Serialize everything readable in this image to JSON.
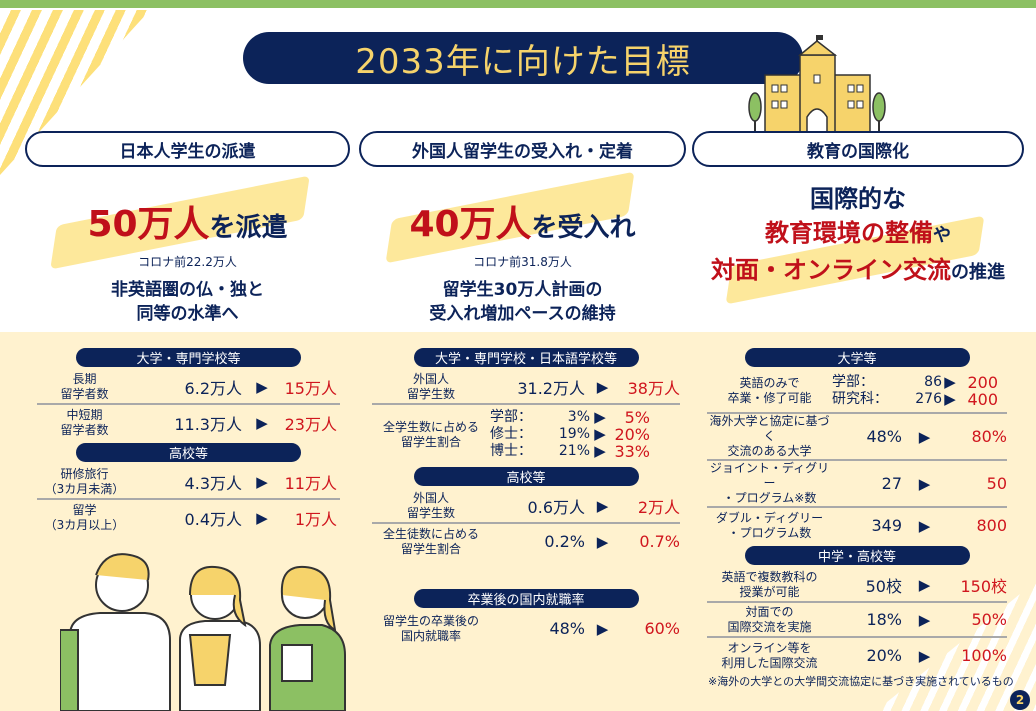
{
  "title": "2033年に向けた目標",
  "page_number": "2",
  "colors": {
    "navy": "#0c2359",
    "red": "#d0161e",
    "cream": "#fff2cf",
    "green": "#8cc063",
    "yellow": "#f6d36b"
  },
  "columns": [
    {
      "heading": "日本人学生の派遣",
      "big": "50万人",
      "mid": "を派遣",
      "sub": "コロナ前22.2万人",
      "desc": "非英語圏の仏・独と\n同等の水準へ"
    },
    {
      "heading": "外国人留学生の受入れ・定着",
      "big": "40万人",
      "mid": "を受入れ",
      "sub": "コロナ前31.8万人",
      "desc": "留学生30万人計画の\n受入れ増加ペースの維持"
    },
    {
      "heading": "教育の国際化",
      "line1": "国際的な",
      "line2a": "教育環境の整備",
      "line2b": "や",
      "line3a": "対面・オンライン交流",
      "line3b": "の推進"
    }
  ],
  "tables": [
    [
      {
        "pill": "大学・専門学校等"
      },
      {
        "label": "長期\n留学者数",
        "value": "6.2万人",
        "target": "15万人"
      },
      {
        "label": "中短期\n留学者数",
        "value": "11.3万人",
        "target": "23万人",
        "last": true
      },
      {
        "pill": "高校等"
      },
      {
        "label": "研修旅行\n（3カ月未満）",
        "value": "4.3万人",
        "target": "11万人"
      },
      {
        "label": "留学\n（3カ月以上）",
        "value": "0.4万人",
        "target": "1万人",
        "last": true
      }
    ],
    [
      {
        "pill": "大学・専門学校・日本語学校等"
      },
      {
        "label": "外国人\n留学生数",
        "value": "31.2万人",
        "target": "38万人"
      },
      {
        "label": "全学生数に占める\n留学生割合",
        "subs": [
          {
            "k": "学部：",
            "v": "3%",
            "t": "5%"
          },
          {
            "k": "修士：",
            "v": "19%",
            "t": "20%"
          },
          {
            "k": "博士：",
            "v": "21%",
            "t": "33%"
          }
        ],
        "last": true
      },
      {
        "pill": "高校等"
      },
      {
        "label": "外国人\n留学生数",
        "value": "0.6万人",
        "target": "2万人"
      },
      {
        "label": "全生徒数に占める\n留学生割合",
        "value": "0.2%",
        "target": "0.7%",
        "last": true
      },
      {
        "pill": "卒業後の国内就職率",
        "gap": true
      },
      {
        "label": "留学生の卒業後の\n国内就職率",
        "value": "48%",
        "target": "60%",
        "last": true
      }
    ],
    [
      {
        "pill": "大学等"
      },
      {
        "label": "英語のみで\n卒業・修了可能",
        "subs": [
          {
            "k": "学部：",
            "v": "86",
            "t": "200"
          },
          {
            "k": "研究科：",
            "v": "276",
            "t": "400"
          }
        ]
      },
      {
        "label": "海外大学と協定に基づく\n交流のある大学",
        "value": "48%",
        "target": "80%"
      },
      {
        "label": "ジョイント・ディグリー\n・プログラム※数",
        "value": "27",
        "target": "50"
      },
      {
        "label": "ダブル・ディグリー\n・プログラム数",
        "value": "349",
        "target": "800",
        "last": true
      },
      {
        "pill": "中学・高校等"
      },
      {
        "label": "英語で複数教科の\n授業が可能",
        "value": "50校",
        "target": "150校"
      },
      {
        "label": "対面での\n国際交流を実施",
        "value": "18%",
        "target": "50%"
      },
      {
        "label": "オンライン等を\n利用した国際交流",
        "value": "20%",
        "target": "100%",
        "last": true
      }
    ]
  ],
  "arrow": "▶",
  "footnote": "※海外の大学との大学間交流協定に基づき実施されているもの",
  "icons": [
    "school-building-icon",
    "tree-icon",
    "students-illustration",
    "stripe-decoration"
  ]
}
